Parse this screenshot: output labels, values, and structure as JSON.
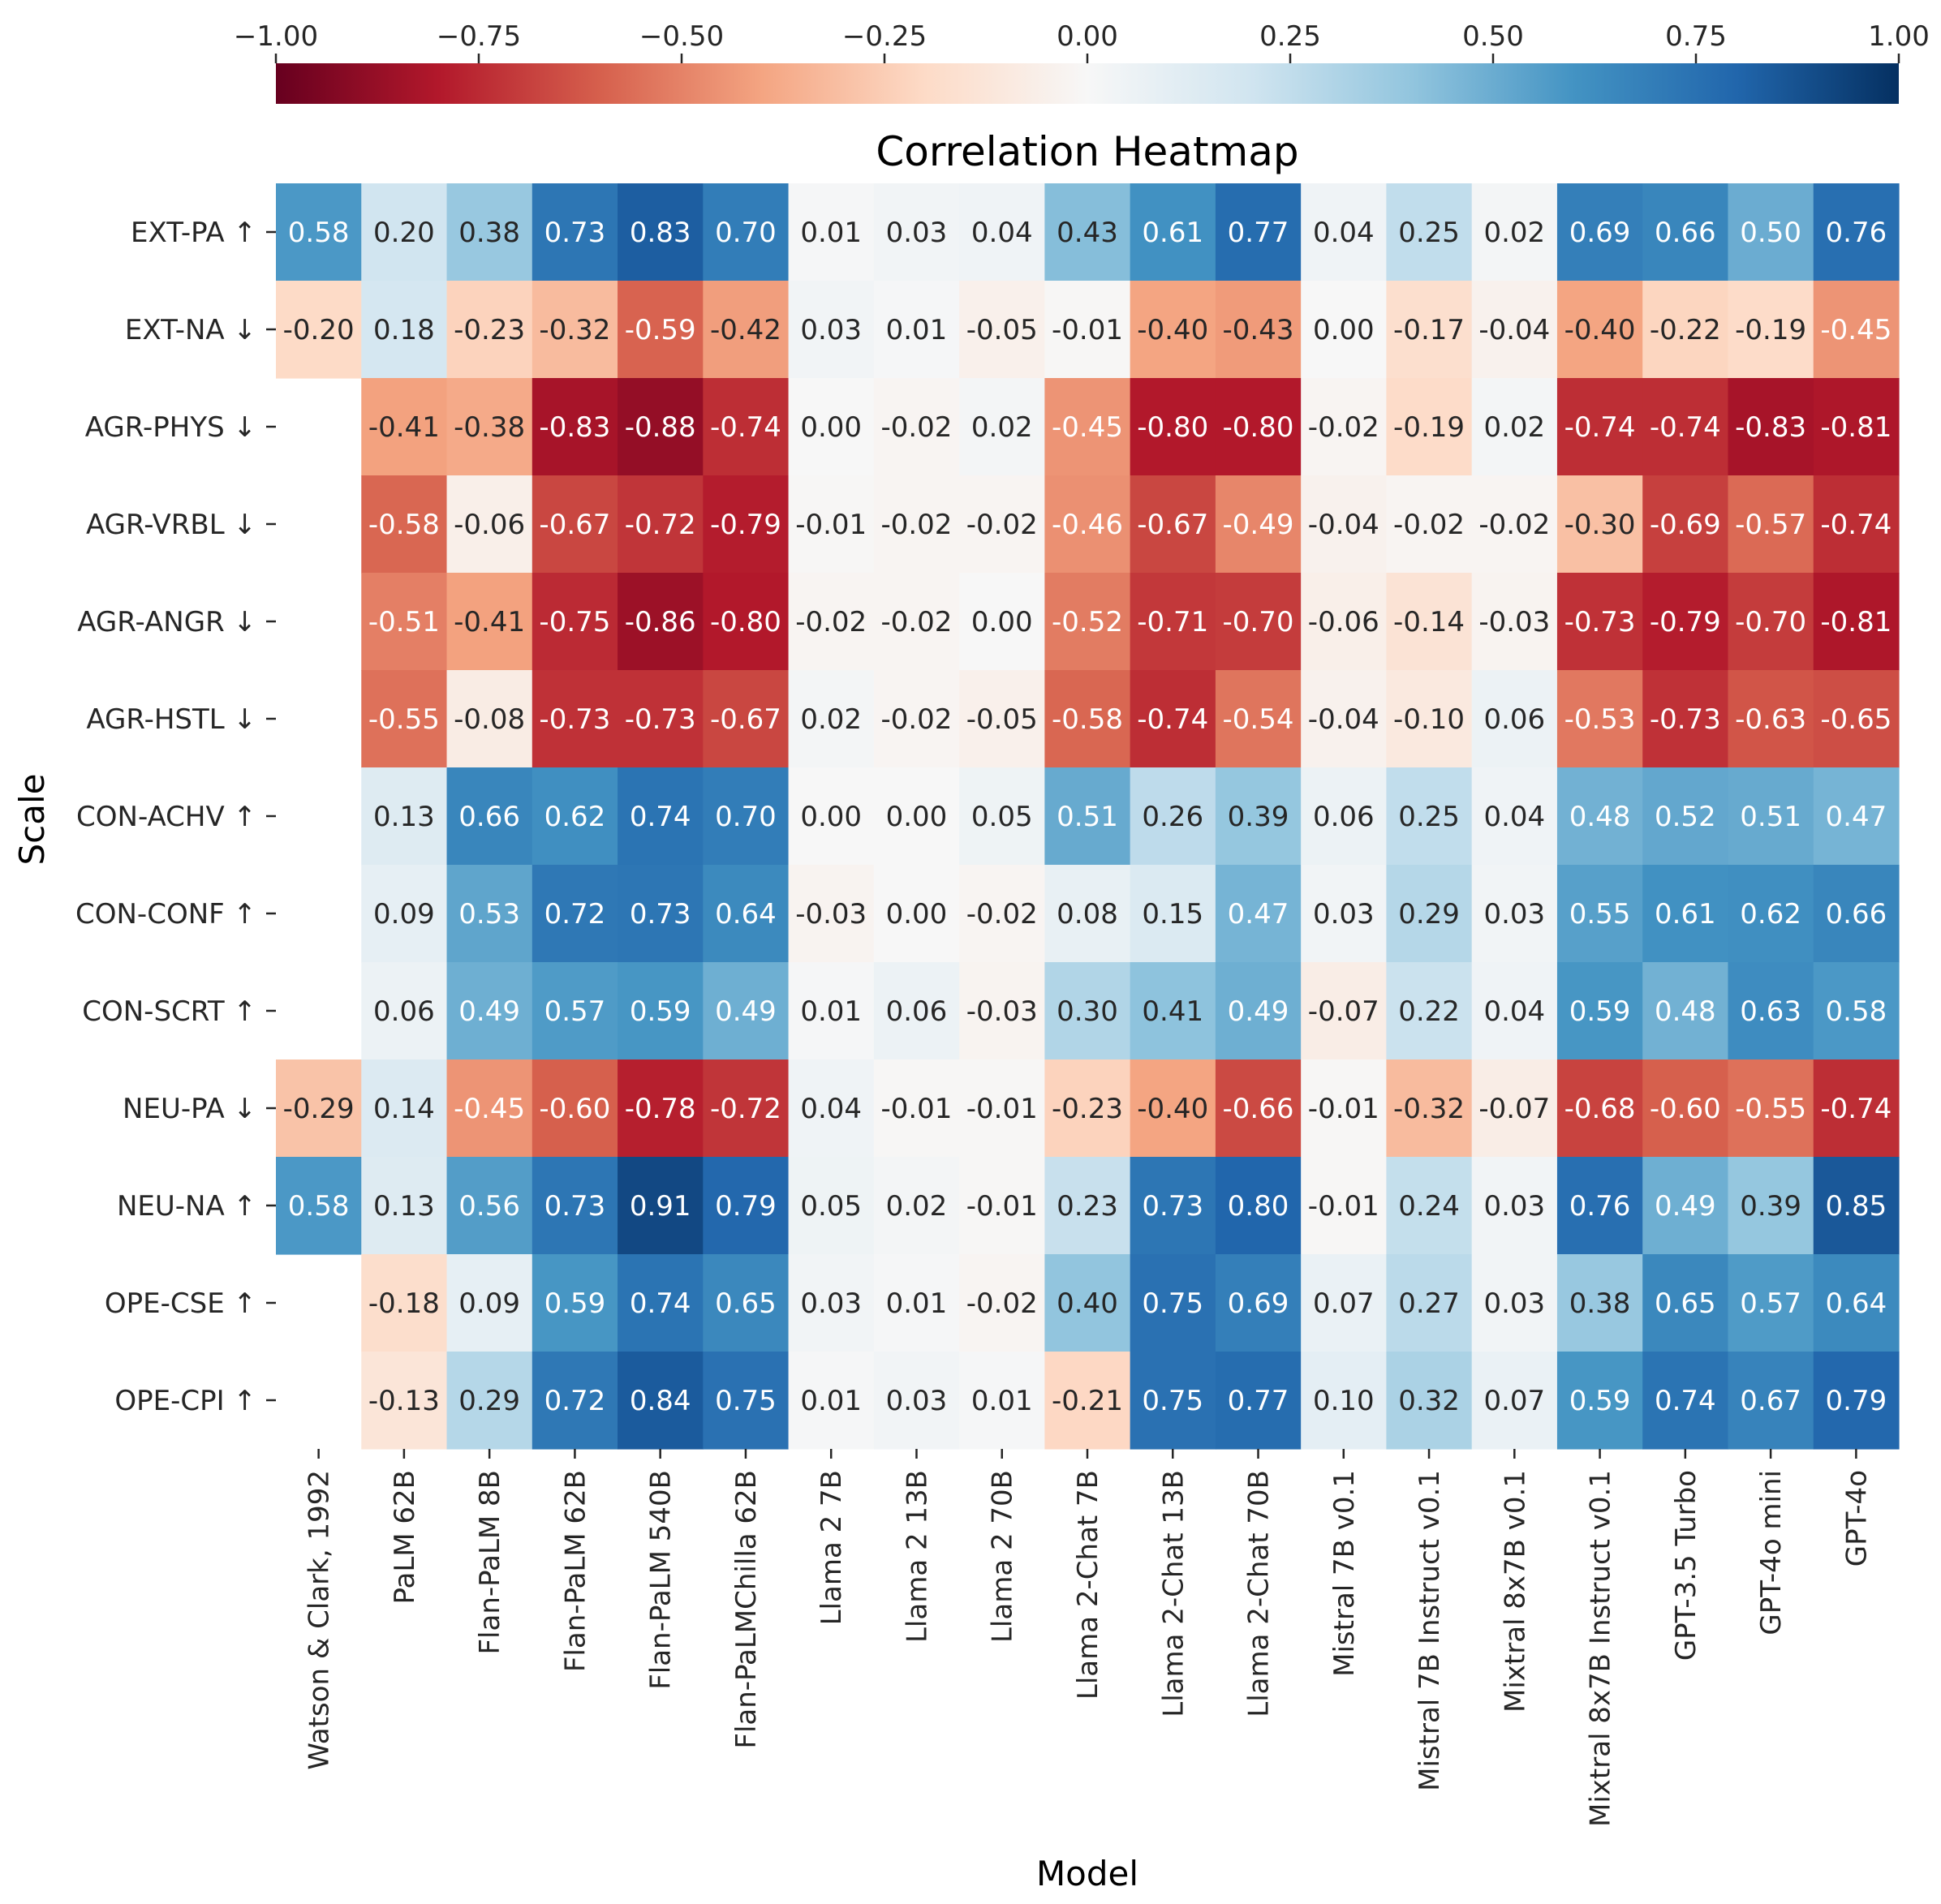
{
  "chart_data": {
    "type": "heatmap",
    "title": "Correlation Heatmap",
    "xlabel": "Model",
    "ylabel": "Scale",
    "colorbar": {
      "location": "top",
      "range": [
        -1.0,
        1.0
      ],
      "ticks": [
        -1.0,
        -0.75,
        -0.5,
        -0.25,
        0.0,
        0.25,
        0.5,
        0.75,
        1.0
      ],
      "tick_labels": [
        "−1.00",
        "−0.75",
        "−0.50",
        "−0.25",
        "0.00",
        "0.25",
        "0.50",
        "0.75",
        "1.00"
      ],
      "colormap": "RdBu"
    },
    "columns": [
      "Watson & Clark, 1992",
      "PaLM 62B",
      "Flan-PaLM 8B",
      "Flan-PaLM 62B",
      "Flan-PaLM 540B",
      "Flan-PaLMChilla 62B",
      "Llama 2 7B",
      "Llama 2 13B",
      "Llama 2 70B",
      "Llama 2-Chat 7B",
      "Llama 2-Chat 13B",
      "Llama 2-Chat 70B",
      "Mistral 7B v0.1",
      "Mistral 7B Instruct v0.1",
      "Mixtral 8x7B v0.1",
      "Mixtral 8x7B Instruct v0.1",
      "GPT-3.5 Turbo",
      "GPT-4o mini",
      "GPT-4o"
    ],
    "rows": [
      "EXT-PA ↑",
      "EXT-NA ↓",
      "AGR-PHYS ↓",
      "AGR-VRBL ↓",
      "AGR-ANGR ↓",
      "AGR-HSTL ↓",
      "CON-ACHV ↑",
      "CON-CONF ↑",
      "CON-SCRT ↑",
      "NEU-PA ↓",
      "NEU-NA ↑",
      "OPE-CSE ↑",
      "OPE-CPI ↑"
    ],
    "values": [
      [
        0.58,
        0.2,
        0.38,
        0.73,
        0.83,
        0.7,
        0.01,
        0.03,
        0.04,
        0.43,
        0.61,
        0.77,
        0.04,
        0.25,
        0.02,
        0.69,
        0.66,
        0.5,
        0.76
      ],
      [
        -0.2,
        0.18,
        -0.23,
        -0.32,
        -0.59,
        -0.42,
        0.03,
        0.01,
        -0.05,
        -0.01,
        -0.4,
        -0.43,
        0.0,
        -0.17,
        -0.04,
        -0.4,
        -0.22,
        -0.19,
        -0.45
      ],
      [
        null,
        -0.41,
        -0.38,
        -0.83,
        -0.88,
        -0.74,
        0.0,
        -0.02,
        0.02,
        -0.45,
        -0.8,
        -0.8,
        -0.02,
        -0.19,
        0.02,
        -0.74,
        -0.74,
        -0.83,
        -0.81
      ],
      [
        null,
        -0.58,
        -0.06,
        -0.67,
        -0.72,
        -0.79,
        -0.01,
        -0.02,
        -0.02,
        -0.46,
        -0.67,
        -0.49,
        -0.04,
        -0.02,
        -0.02,
        -0.3,
        -0.69,
        -0.57,
        -0.74
      ],
      [
        null,
        -0.51,
        -0.41,
        -0.75,
        -0.86,
        -0.8,
        -0.02,
        -0.02,
        0.0,
        -0.52,
        -0.71,
        -0.7,
        -0.06,
        -0.14,
        -0.03,
        -0.73,
        -0.79,
        -0.7,
        -0.81
      ],
      [
        null,
        -0.55,
        -0.08,
        -0.73,
        -0.73,
        -0.67,
        0.02,
        -0.02,
        -0.05,
        -0.58,
        -0.74,
        -0.54,
        -0.04,
        -0.1,
        0.06,
        -0.53,
        -0.73,
        -0.63,
        -0.65
      ],
      [
        null,
        0.13,
        0.66,
        0.62,
        0.74,
        0.7,
        0.0,
        0.0,
        0.05,
        0.51,
        0.26,
        0.39,
        0.06,
        0.25,
        0.04,
        0.48,
        0.52,
        0.51,
        0.47
      ],
      [
        null,
        0.09,
        0.53,
        0.72,
        0.73,
        0.64,
        -0.03,
        0.0,
        -0.02,
        0.08,
        0.15,
        0.47,
        0.03,
        0.29,
        0.03,
        0.55,
        0.61,
        0.62,
        0.66
      ],
      [
        null,
        0.06,
        0.49,
        0.57,
        0.59,
        0.49,
        0.01,
        0.06,
        -0.03,
        0.3,
        0.41,
        0.49,
        -0.07,
        0.22,
        0.04,
        0.59,
        0.48,
        0.63,
        0.58
      ],
      [
        -0.29,
        0.14,
        -0.45,
        -0.6,
        -0.78,
        -0.72,
        0.04,
        -0.01,
        -0.01,
        -0.23,
        -0.4,
        -0.66,
        -0.01,
        -0.32,
        -0.07,
        -0.68,
        -0.6,
        -0.55,
        -0.74
      ],
      [
        0.58,
        0.13,
        0.56,
        0.73,
        0.91,
        0.79,
        0.05,
        0.02,
        -0.01,
        0.23,
        0.73,
        0.8,
        -0.01,
        0.24,
        0.03,
        0.76,
        0.49,
        0.39,
        0.85
      ],
      [
        null,
        -0.18,
        0.09,
        0.59,
        0.74,
        0.65,
        0.03,
        0.01,
        -0.02,
        0.4,
        0.75,
        0.69,
        0.07,
        0.27,
        0.03,
        0.38,
        0.65,
        0.57,
        0.64
      ],
      [
        null,
        -0.13,
        0.29,
        0.72,
        0.84,
        0.75,
        0.01,
        0.03,
        0.01,
        -0.21,
        0.75,
        0.77,
        0.1,
        0.32,
        0.07,
        0.59,
        0.74,
        0.67,
        0.79
      ]
    ]
  }
}
